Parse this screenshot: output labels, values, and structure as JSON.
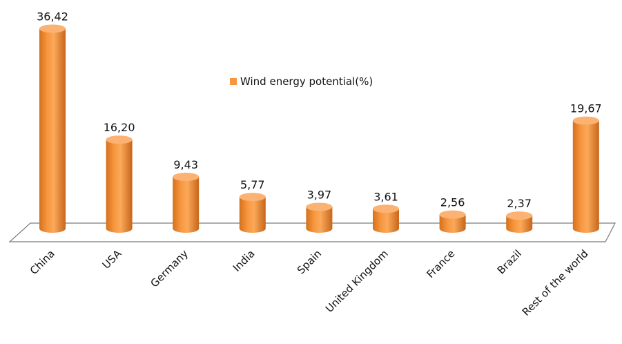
{
  "chart_data": {
    "type": "bar",
    "categories": [
      "China",
      "USA",
      "Germany",
      "India",
      "Spain",
      "United Kingdom",
      "France",
      "Brazil",
      "Rest of the world"
    ],
    "series": [
      {
        "name": "Wind energy potential(%)",
        "values": [
          36.42,
          16.2,
          9.43,
          5.77,
          3.97,
          3.61,
          2.56,
          2.37,
          19.67
        ],
        "labels": [
          "36,42",
          "16,20",
          "9,43",
          "5,77",
          "3,97",
          "3,61",
          "2,56",
          "2,37",
          "19,67"
        ]
      }
    ],
    "title": "",
    "xlabel": "",
    "ylabel": "",
    "ylim": [
      0,
      40
    ],
    "grid": false,
    "legend_position": "top-center",
    "three_d": true,
    "colors": {
      "bar": "#F7963E",
      "bar_dark": "#C8661A",
      "bar_top": "#FBB272",
      "floor": "#7a7a7a"
    }
  }
}
